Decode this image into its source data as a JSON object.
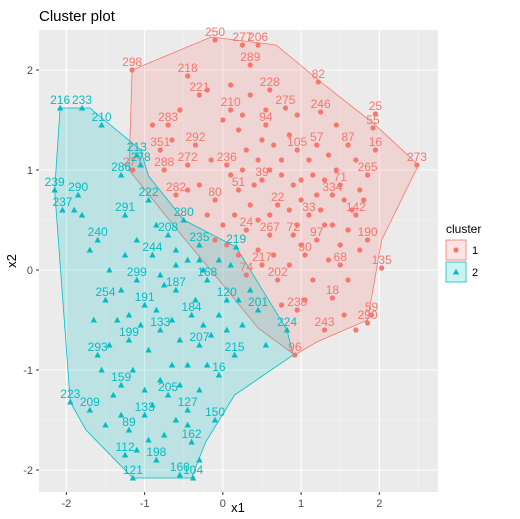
{
  "chart_data": {
    "type": "scatter",
    "title": "Cluster plot",
    "xlabel": "x1",
    "ylabel": "x2",
    "xlim": [
      -2.35,
      2.75
    ],
    "ylim": [
      -2.22,
      2.4
    ],
    "xticks": [
      -2,
      -1,
      0,
      1,
      2
    ],
    "yticks": [
      -2,
      -1,
      0,
      1,
      2
    ],
    "grid": true,
    "legend": {
      "title": "cluster",
      "position": "right",
      "entries": [
        "1",
        "2"
      ]
    },
    "colors": {
      "1": "#F8766D",
      "2": "#00BFC4",
      "panel": "#EBEBEB",
      "grid": "#FFFFFF"
    },
    "hulls": {
      "1": [
        [
          -0.15,
          2.33
        ],
        [
          0.68,
          2.25
        ],
        [
          1.3,
          1.85
        ],
        [
          1.92,
          1.47
        ],
        [
          2.5,
          1.05
        ],
        [
          2.03,
          0.3
        ],
        [
          1.85,
          -0.5
        ],
        [
          1.2,
          -0.72
        ],
        [
          0.92,
          -0.85
        ],
        [
          0.45,
          -0.58
        ],
        [
          -0.05,
          -0.1
        ],
        [
          -0.52,
          0.34
        ],
        [
          -1.2,
          1.0
        ],
        [
          -1.16,
          2.0
        ]
      ],
      "2": [
        [
          -2.08,
          1.62
        ],
        [
          -1.7,
          1.62
        ],
        [
          -1.05,
          1.2
        ],
        [
          -0.95,
          0.94
        ],
        [
          -0.5,
          0.5
        ],
        [
          0.17,
          0.23
        ],
        [
          0.82,
          -0.6
        ],
        [
          0.9,
          -0.85
        ],
        [
          0.15,
          -1.25
        ],
        [
          -0.22,
          -1.72
        ],
        [
          -0.4,
          -2.08
        ],
        [
          -1.15,
          -2.08
        ],
        [
          -1.75,
          -1.6
        ],
        [
          -1.95,
          -1.32
        ],
        [
          -2.15,
          0.8
        ]
      ]
    },
    "series": [
      {
        "name": "1",
        "points": [
          {
            "x": -0.1,
            "y": 2.3,
            "label": "250"
          },
          {
            "x": 0.25,
            "y": 2.25,
            "label": "277"
          },
          {
            "x": 0.45,
            "y": 2.25,
            "label": "206"
          },
          {
            "x": -1.16,
            "y": 2.0,
            "label": "298"
          },
          {
            "x": 1.22,
            "y": 1.88,
            "label": "82"
          },
          {
            "x": -0.45,
            "y": 1.94,
            "label": "218"
          },
          {
            "x": 0.35,
            "y": 2.05,
            "label": "289"
          },
          {
            "x": 0.6,
            "y": 1.8,
            "label": "228"
          },
          {
            "x": 0.8,
            "y": 1.62,
            "label": "275"
          },
          {
            "x": 1.25,
            "y": 1.58,
            "label": "246"
          },
          {
            "x": 1.95,
            "y": 1.56,
            "label": "25"
          },
          {
            "x": 2.48,
            "y": 1.05,
            "label": "273"
          },
          {
            "x": 1.92,
            "y": 1.42,
            "label": "55"
          },
          {
            "x": -1.15,
            "y": 1.0,
            "label": "271"
          },
          {
            "x": -0.3,
            "y": 1.75,
            "label": "221"
          },
          {
            "x": -0.7,
            "y": 1.45,
            "label": "283"
          },
          {
            "x": -0.8,
            "y": 1.2,
            "label": "351"
          },
          {
            "x": -0.75,
            "y": 1.0,
            "label": "288"
          },
          {
            "x": -0.35,
            "y": 1.25,
            "label": "292"
          },
          {
            "x": 0.1,
            "y": 1.6,
            "label": "210"
          },
          {
            "x": 0.55,
            "y": 1.45,
            "label": "94"
          },
          {
            "x": 0.95,
            "y": 1.2,
            "label": "105"
          },
          {
            "x": 1.2,
            "y": 1.25,
            "label": "57"
          },
          {
            "x": 1.6,
            "y": 1.25,
            "label": "87"
          },
          {
            "x": 1.95,
            "y": 1.2,
            "label": "16"
          },
          {
            "x": 1.5,
            "y": 0.85,
            "label": "71"
          },
          {
            "x": 1.85,
            "y": 0.95,
            "label": "265"
          },
          {
            "x": 1.4,
            "y": 0.75,
            "label": "334"
          },
          {
            "x": 1.1,
            "y": 0.55,
            "label": "33"
          },
          {
            "x": 0.5,
            "y": 0.9,
            "label": "39"
          },
          {
            "x": 0.2,
            "y": 0.8,
            "label": "51"
          },
          {
            "x": 0.7,
            "y": 0.65,
            "label": "22"
          },
          {
            "x": 0.3,
            "y": 0.4,
            "label": "24"
          },
          {
            "x": -0.1,
            "y": 0.7,
            "label": "80"
          },
          {
            "x": 0.6,
            "y": 0.35,
            "label": "267"
          },
          {
            "x": 0.9,
            "y": 0.35,
            "label": "72"
          },
          {
            "x": 1.2,
            "y": 0.3,
            "label": "97"
          },
          {
            "x": 1.7,
            "y": 0.55,
            "label": "142"
          },
          {
            "x": 1.85,
            "y": 0.3,
            "label": "190"
          },
          {
            "x": 2.03,
            "y": 0.02,
            "label": "135"
          },
          {
            "x": 1.9,
            "y": -0.45,
            "label": "59"
          },
          {
            "x": 1.85,
            "y": -0.53,
            "label": "290"
          },
          {
            "x": 1.4,
            "y": -0.28,
            "label": "18"
          },
          {
            "x": 0.95,
            "y": -0.4,
            "label": "238"
          },
          {
            "x": 1.3,
            "y": -0.6,
            "label": "243"
          },
          {
            "x": 0.92,
            "y": -0.85,
            "label": "96"
          },
          {
            "x": 0.7,
            "y": -0.1,
            "label": "202"
          },
          {
            "x": 0.3,
            "y": -0.05,
            "label": "74"
          },
          {
            "x": 0.5,
            "y": 0.05,
            "label": "217"
          },
          {
            "x": 1.05,
            "y": 0.15,
            "label": "30"
          },
          {
            "x": 1.5,
            "y": 0.05,
            "label": "68"
          },
          {
            "x": -0.6,
            "y": 0.75,
            "label": "282"
          },
          {
            "x": -0.45,
            "y": 1.05,
            "label": "272"
          },
          {
            "x": 0.05,
            "y": 1.05,
            "label": "236"
          }
        ]
      },
      {
        "name": "2",
        "points": [
          {
            "x": -2.08,
            "y": 1.62,
            "label": "216"
          },
          {
            "x": -1.8,
            "y": 1.62,
            "label": "233"
          },
          {
            "x": -1.55,
            "y": 1.45,
            "label": "210"
          },
          {
            "x": -2.15,
            "y": 0.8,
            "label": "239"
          },
          {
            "x": -1.85,
            "y": 0.75,
            "label": "290"
          },
          {
            "x": -2.05,
            "y": 0.6,
            "label": "237"
          },
          {
            "x": -1.3,
            "y": 0.95,
            "label": "286"
          },
          {
            "x": -1.1,
            "y": 1.15,
            "label": "213"
          },
          {
            "x": -1.05,
            "y": 1.05,
            "label": "278"
          },
          {
            "x": -0.95,
            "y": 0.7,
            "label": "222"
          },
          {
            "x": -1.25,
            "y": 0.55,
            "label": "291"
          },
          {
            "x": -0.5,
            "y": 0.5,
            "label": "280"
          },
          {
            "x": -0.7,
            "y": 0.35,
            "label": "208"
          },
          {
            "x": -1.6,
            "y": 0.3,
            "label": "240"
          },
          {
            "x": -0.3,
            "y": 0.25,
            "label": "235"
          },
          {
            "x": -0.9,
            "y": 0.15,
            "label": "244"
          },
          {
            "x": 0.17,
            "y": 0.23,
            "label": "219"
          },
          {
            "x": -1.1,
            "y": -0.1,
            "label": "299"
          },
          {
            "x": -1.5,
            "y": -0.3,
            "label": "254"
          },
          {
            "x": -0.6,
            "y": -0.2,
            "label": "187"
          },
          {
            "x": -0.2,
            "y": -0.1,
            "label": "168"
          },
          {
            "x": 0.05,
            "y": -0.3,
            "label": "120"
          },
          {
            "x": 0.45,
            "y": -0.4,
            "label": "201"
          },
          {
            "x": 0.82,
            "y": -0.6,
            "label": "224"
          },
          {
            "x": -1.6,
            "y": -0.85,
            "label": "293"
          },
          {
            "x": -1.2,
            "y": -0.7,
            "label": "199"
          },
          {
            "x": -0.8,
            "y": -0.6,
            "label": "133"
          },
          {
            "x": -0.3,
            "y": -0.75,
            "label": "207"
          },
          {
            "x": 0.15,
            "y": -0.85,
            "label": "215"
          },
          {
            "x": -0.05,
            "y": -1.05,
            "label": "16"
          },
          {
            "x": -1.3,
            "y": -1.15,
            "label": "159"
          },
          {
            "x": -0.7,
            "y": -1.25,
            "label": "205"
          },
          {
            "x": -1.7,
            "y": -1.4,
            "label": "209"
          },
          {
            "x": -1.95,
            "y": -1.32,
            "label": "223"
          },
          {
            "x": -0.45,
            "y": -1.4,
            "label": "127"
          },
          {
            "x": -0.1,
            "y": -1.5,
            "label": "150"
          },
          {
            "x": -1.0,
            "y": -1.45,
            "label": "133"
          },
          {
            "x": -0.4,
            "y": -1.72,
            "label": "162"
          },
          {
            "x": -1.2,
            "y": -1.6,
            "label": "89"
          },
          {
            "x": -0.85,
            "y": -1.9,
            "label": "198"
          },
          {
            "x": -1.15,
            "y": -2.08,
            "label": "121"
          },
          {
            "x": -0.55,
            "y": -2.05,
            "label": "160"
          },
          {
            "x": -0.38,
            "y": -2.08,
            "label": "104"
          },
          {
            "x": -1.25,
            "y": -1.85,
            "label": "112"
          },
          {
            "x": -1.0,
            "y": -0.35,
            "label": "191"
          },
          {
            "x": -0.4,
            "y": -0.45,
            "label": "184"
          }
        ]
      }
    ],
    "extra_points": {
      "1": [
        [
          -0.2,
          1.8
        ],
        [
          0.0,
          1.5
        ],
        [
          0.2,
          1.4
        ],
        [
          0.3,
          1.2
        ],
        [
          0.45,
          1.1
        ],
        [
          0.6,
          1.0
        ],
        [
          0.75,
          0.95
        ],
        [
          0.9,
          0.85
        ],
        [
          1.0,
          0.9
        ],
        [
          1.15,
          0.95
        ],
        [
          1.3,
          0.9
        ],
        [
          1.45,
          1.0
        ],
        [
          1.55,
          0.7
        ],
        [
          1.65,
          0.6
        ],
        [
          1.75,
          0.8
        ],
        [
          1.6,
          0.4
        ],
        [
          1.4,
          0.45
        ],
        [
          1.25,
          0.6
        ],
        [
          1.3,
          0.45
        ],
        [
          1.0,
          0.7
        ],
        [
          0.85,
          0.6
        ],
        [
          0.6,
          0.55
        ],
        [
          0.45,
          0.5
        ],
        [
          0.35,
          0.65
        ],
        [
          0.15,
          0.55
        ],
        [
          0.0,
          0.45
        ],
        [
          -0.2,
          0.55
        ],
        [
          -0.3,
          0.85
        ],
        [
          -0.15,
          1.1
        ],
        [
          0.1,
          0.95
        ],
        [
          0.25,
          1.0
        ],
        [
          0.4,
          0.85
        ],
        [
          0.65,
          1.25
        ],
        [
          0.85,
          1.35
        ],
        [
          1.1,
          1.1
        ],
        [
          1.35,
          1.15
        ],
        [
          1.7,
          1.1
        ],
        [
          1.8,
          0.7
        ],
        [
          1.75,
          0.2
        ],
        [
          1.6,
          -0.1
        ],
        [
          1.35,
          0.1
        ],
        [
          1.15,
          -0.1
        ],
        [
          0.85,
          0.05
        ],
        [
          0.65,
          0.15
        ],
        [
          0.45,
          0.2
        ],
        [
          0.2,
          0.15
        ],
        [
          1.05,
          -0.3
        ],
        [
          0.75,
          -0.35
        ],
        [
          1.55,
          -0.45
        ],
        [
          1.7,
          -0.6
        ],
        [
          0.55,
          1.6
        ],
        [
          0.35,
          1.75
        ],
        [
          0.1,
          1.85
        ],
        [
          -0.55,
          1.6
        ],
        [
          -0.65,
          1.3
        ],
        [
          -0.9,
          1.45
        ],
        [
          -0.45,
          0.8
        ],
        [
          0.95,
          1.55
        ],
        [
          1.45,
          1.45
        ],
        [
          1.2,
          0.75
        ],
        [
          1.5,
          0.25
        ],
        [
          0.95,
          0.45
        ],
        [
          0.05,
          0.25
        ],
        [
          -0.1,
          0.3
        ],
        [
          0.25,
          1.55
        ],
        [
          0.5,
          1.3
        ],
        [
          0.75,
          1.1
        ],
        [
          1.0,
          0.25
        ]
      ],
      "2": [
        [
          -1.8,
          0.55
        ],
        [
          -1.7,
          0.2
        ],
        [
          -1.45,
          0.0
        ],
        [
          -1.3,
          -0.2
        ],
        [
          -1.2,
          -0.45
        ],
        [
          -1.05,
          -0.55
        ],
        [
          -0.95,
          -0.8
        ],
        [
          -0.85,
          -0.4
        ],
        [
          -0.75,
          -0.15
        ],
        [
          -0.65,
          -0.5
        ],
        [
          -0.55,
          -0.7
        ],
        [
          -0.45,
          -0.95
        ],
        [
          -0.35,
          -0.3
        ],
        [
          -0.25,
          -0.55
        ],
        [
          -0.15,
          -0.65
        ],
        [
          -0.05,
          -0.45
        ],
        [
          0.05,
          -0.6
        ],
        [
          0.25,
          -0.55
        ],
        [
          0.35,
          -0.2
        ],
        [
          0.1,
          0.05
        ],
        [
          -0.05,
          0.1
        ],
        [
          -0.25,
          0.0
        ],
        [
          -0.45,
          0.1
        ],
        [
          -0.6,
          0.05
        ],
        [
          -0.8,
          -0.05
        ],
        [
          -1.35,
          -0.5
        ],
        [
          -1.45,
          -0.75
        ],
        [
          -1.55,
          -1.0
        ],
        [
          -1.4,
          -1.25
        ],
        [
          -1.15,
          -1.0
        ],
        [
          -1.0,
          -1.2
        ],
        [
          -0.9,
          -1.35
        ],
        [
          -0.8,
          -1.1
        ],
        [
          -0.65,
          -0.95
        ],
        [
          -0.55,
          -1.15
        ],
        [
          -0.3,
          -1.2
        ],
        [
          -0.2,
          -0.95
        ],
        [
          -0.6,
          -1.5
        ],
        [
          -0.75,
          -1.65
        ],
        [
          -0.95,
          -1.7
        ],
        [
          -1.1,
          -1.8
        ],
        [
          -1.3,
          -1.45
        ],
        [
          -1.5,
          -1.55
        ],
        [
          -0.3,
          -1.9
        ],
        [
          -0.45,
          -1.55
        ],
        [
          -1.65,
          -0.5
        ],
        [
          -1.1,
          0.3
        ],
        [
          -0.85,
          0.45
        ],
        [
          -0.6,
          0.2
        ],
        [
          -0.3,
          0.1
        ],
        [
          0.55,
          -0.75
        ],
        [
          0.2,
          -0.3
        ],
        [
          -1.25,
          0.15
        ],
        [
          -1.9,
          0.6
        ]
      ]
    }
  }
}
